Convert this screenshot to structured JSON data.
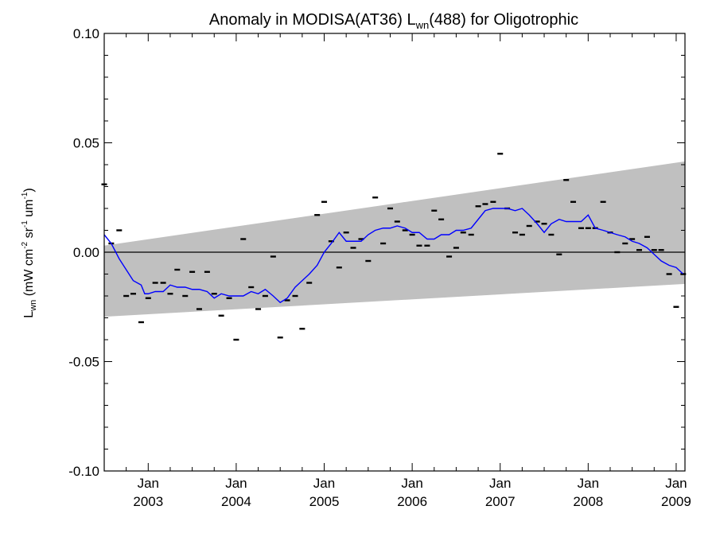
{
  "chart_data": {
    "type": "line",
    "title": {
      "prefix": "Anomaly in MODISA(AT36) L",
      "sub": "wn",
      "suffix": "(488) for Oligotrophic"
    },
    "ylabel": {
      "symbol": "L",
      "symbol_sub": "wn",
      "units_open": " (mW cm",
      "exp1": "-2",
      "units_mid1": " sr",
      "exp2": "-1",
      "units_mid2": " um",
      "exp3": "-1",
      "units_close": ")"
    },
    "xlim": [
      2002.5,
      2009.1
    ],
    "ylim": [
      -0.1,
      0.1
    ],
    "yticks": [
      {
        "value": -0.1,
        "label": "-0.10"
      },
      {
        "value": -0.05,
        "label": "-0.05"
      },
      {
        "value": 0.0,
        "label": "0.00"
      },
      {
        "value": 0.05,
        "label": "0.05"
      },
      {
        "value": 0.1,
        "label": "0.10"
      }
    ],
    "xticks": [
      {
        "value": 2003,
        "month": "Jan",
        "year": "2003"
      },
      {
        "value": 2004,
        "month": "Jan",
        "year": "2004"
      },
      {
        "value": 2005,
        "month": "Jan",
        "year": "2005"
      },
      {
        "value": 2006,
        "month": "Jan",
        "year": "2006"
      },
      {
        "value": 2007,
        "month": "Jan",
        "year": "2007"
      },
      {
        "value": 2008,
        "month": "Jan",
        "year": "2008"
      },
      {
        "value": 2009,
        "month": "Jan",
        "year": "2009"
      }
    ],
    "zero_line": 0.0,
    "band": {
      "upper": [
        [
          2002.5,
          0.003
        ],
        [
          2009.1,
          0.0415
        ]
      ],
      "lower": [
        [
          2002.5,
          -0.0295
        ],
        [
          2009.1,
          -0.0145
        ]
      ],
      "color": "#c0c0c0"
    },
    "series": [
      {
        "kind": "monthly_points",
        "color": "#000000",
        "points": [
          [
            2002.5,
            0.031
          ],
          [
            2002.58,
            0.004
          ],
          [
            2002.67,
            0.01
          ],
          [
            2002.75,
            -0.02
          ],
          [
            2002.83,
            -0.019
          ],
          [
            2002.92,
            -0.032
          ],
          [
            2003.0,
            -0.021
          ],
          [
            2003.08,
            -0.014
          ],
          [
            2003.17,
            -0.014
          ],
          [
            2003.25,
            -0.019
          ],
          [
            2003.33,
            -0.008
          ],
          [
            2003.42,
            -0.02
          ],
          [
            2003.5,
            -0.009
          ],
          [
            2003.58,
            -0.026
          ],
          [
            2003.67,
            -0.009
          ],
          [
            2003.75,
            -0.019
          ],
          [
            2003.83,
            -0.029
          ],
          [
            2003.92,
            -0.021
          ],
          [
            2004.0,
            -0.04
          ],
          [
            2004.08,
            0.006
          ],
          [
            2004.17,
            -0.016
          ],
          [
            2004.25,
            -0.026
          ],
          [
            2004.33,
            -0.02
          ],
          [
            2004.42,
            -0.002
          ],
          [
            2004.5,
            -0.039
          ],
          [
            2004.58,
            -0.022
          ],
          [
            2004.67,
            -0.02
          ],
          [
            2004.75,
            -0.035
          ],
          [
            2004.83,
            -0.014
          ],
          [
            2004.92,
            0.017
          ],
          [
            2005.0,
            0.023
          ],
          [
            2005.08,
            0.005
          ],
          [
            2005.17,
            -0.007
          ],
          [
            2005.25,
            0.009
          ],
          [
            2005.33,
            0.002
          ],
          [
            2005.42,
            0.006
          ],
          [
            2005.5,
            -0.004
          ],
          [
            2005.58,
            0.025
          ],
          [
            2005.67,
            0.004
          ],
          [
            2005.75,
            0.02
          ],
          [
            2005.83,
            0.014
          ],
          [
            2005.92,
            0.01
          ],
          [
            2006.0,
            0.008
          ],
          [
            2006.08,
            0.003
          ],
          [
            2006.17,
            0.003
          ],
          [
            2006.25,
            0.019
          ],
          [
            2006.33,
            0.015
          ],
          [
            2006.42,
            -0.002
          ],
          [
            2006.5,
            0.002
          ],
          [
            2006.58,
            0.009
          ],
          [
            2006.67,
            0.008
          ],
          [
            2006.75,
            0.021
          ],
          [
            2006.83,
            0.022
          ],
          [
            2006.92,
            0.023
          ],
          [
            2007.0,
            0.045
          ],
          [
            2007.08,
            0.02
          ],
          [
            2007.17,
            0.009
          ],
          [
            2007.25,
            0.008
          ],
          [
            2007.33,
            0.012
          ],
          [
            2007.42,
            0.014
          ],
          [
            2007.5,
            0.013
          ],
          [
            2007.58,
            0.008
          ],
          [
            2007.67,
            -0.001
          ],
          [
            2007.75,
            0.033
          ],
          [
            2007.83,
            0.023
          ],
          [
            2007.92,
            0.011
          ],
          [
            2008.0,
            0.011
          ],
          [
            2008.08,
            0.011
          ],
          [
            2008.17,
            0.023
          ],
          [
            2008.25,
            0.009
          ],
          [
            2008.33,
            0.0
          ],
          [
            2008.42,
            0.004
          ],
          [
            2008.5,
            0.006
          ],
          [
            2008.58,
            0.001
          ],
          [
            2008.67,
            0.007
          ],
          [
            2008.75,
            0.001
          ],
          [
            2008.83,
            0.001
          ],
          [
            2008.92,
            -0.01
          ],
          [
            2009.0,
            -0.025
          ],
          [
            2009.08,
            -0.01
          ]
        ]
      },
      {
        "kind": "smoothed_line",
        "color": "#0000ff",
        "points": [
          [
            2002.5,
            0.008
          ],
          [
            2002.58,
            0.004
          ],
          [
            2002.67,
            -0.003
          ],
          [
            2002.75,
            -0.008
          ],
          [
            2002.83,
            -0.013
          ],
          [
            2002.92,
            -0.015
          ],
          [
            2002.96,
            -0.019
          ],
          [
            2003.0,
            -0.019
          ],
          [
            2003.08,
            -0.018
          ],
          [
            2003.17,
            -0.018
          ],
          [
            2003.25,
            -0.015
          ],
          [
            2003.33,
            -0.016
          ],
          [
            2003.42,
            -0.016
          ],
          [
            2003.5,
            -0.017
          ],
          [
            2003.58,
            -0.017
          ],
          [
            2003.67,
            -0.018
          ],
          [
            2003.75,
            -0.021
          ],
          [
            2003.83,
            -0.019
          ],
          [
            2003.92,
            -0.02
          ],
          [
            2004.0,
            -0.02
          ],
          [
            2004.08,
            -0.02
          ],
          [
            2004.17,
            -0.018
          ],
          [
            2004.25,
            -0.019
          ],
          [
            2004.33,
            -0.017
          ],
          [
            2004.42,
            -0.02
          ],
          [
            2004.5,
            -0.023
          ],
          [
            2004.58,
            -0.021
          ],
          [
            2004.67,
            -0.016
          ],
          [
            2004.75,
            -0.013
          ],
          [
            2004.83,
            -0.01
          ],
          [
            2004.92,
            -0.006
          ],
          [
            2005.0,
            0.0
          ],
          [
            2005.08,
            0.004
          ],
          [
            2005.17,
            0.009
          ],
          [
            2005.25,
            0.005
          ],
          [
            2005.33,
            0.005
          ],
          [
            2005.42,
            0.005
          ],
          [
            2005.5,
            0.008
          ],
          [
            2005.58,
            0.01
          ],
          [
            2005.67,
            0.011
          ],
          [
            2005.75,
            0.011
          ],
          [
            2005.83,
            0.012
          ],
          [
            2005.92,
            0.011
          ],
          [
            2006.0,
            0.009
          ],
          [
            2006.08,
            0.009
          ],
          [
            2006.17,
            0.006
          ],
          [
            2006.25,
            0.006
          ],
          [
            2006.33,
            0.008
          ],
          [
            2006.42,
            0.008
          ],
          [
            2006.5,
            0.01
          ],
          [
            2006.58,
            0.01
          ],
          [
            2006.67,
            0.011
          ],
          [
            2006.75,
            0.015
          ],
          [
            2006.83,
            0.019
          ],
          [
            2006.92,
            0.02
          ],
          [
            2007.0,
            0.02
          ],
          [
            2007.08,
            0.02
          ],
          [
            2007.17,
            0.019
          ],
          [
            2007.25,
            0.02
          ],
          [
            2007.33,
            0.017
          ],
          [
            2007.42,
            0.013
          ],
          [
            2007.5,
            0.009
          ],
          [
            2007.58,
            0.013
          ],
          [
            2007.67,
            0.015
          ],
          [
            2007.75,
            0.014
          ],
          [
            2007.83,
            0.014
          ],
          [
            2007.92,
            0.014
          ],
          [
            2008.0,
            0.017
          ],
          [
            2008.08,
            0.011
          ],
          [
            2008.17,
            0.01
          ],
          [
            2008.25,
            0.009
          ],
          [
            2008.33,
            0.008
          ],
          [
            2008.42,
            0.007
          ],
          [
            2008.5,
            0.005
          ],
          [
            2008.58,
            0.004
          ],
          [
            2008.67,
            0.002
          ],
          [
            2008.75,
            -0.001
          ],
          [
            2008.83,
            -0.004
          ],
          [
            2008.92,
            -0.006
          ],
          [
            2009.0,
            -0.007
          ],
          [
            2009.08,
            -0.01
          ]
        ]
      }
    ]
  }
}
